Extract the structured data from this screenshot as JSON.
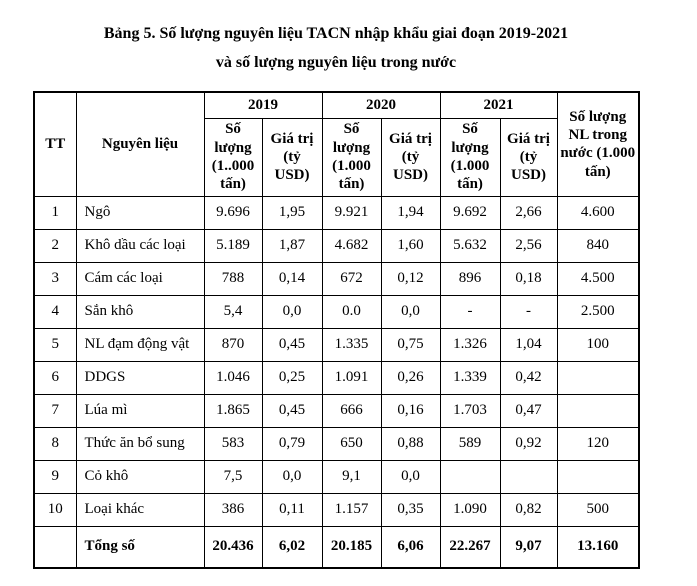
{
  "title": {
    "line1": "Bảng 5. Số lượng nguyên liệu TACN nhập khẩu giai đoạn 2019-2021",
    "line2": "và số lượng nguyên liệu trong nước"
  },
  "table": {
    "header": {
      "tt": "TT",
      "material": "Nguyên liệu",
      "year_groups": [
        {
          "year": "2019",
          "qty_label": "Số lượng (1..000 tấn)",
          "value_label": "Giá trị (tỷ USD)"
        },
        {
          "year": "2020",
          "qty_label": "Số lượng (1.000 tấn)",
          "value_label": "Giá trị (tỷ USD)"
        },
        {
          "year": "2021",
          "qty_label": "Số lượng (1.000 tấn)",
          "value_label": "Giá trị (tỷ USD)"
        }
      ],
      "domestic": "Số lượng NL trong nước (1.000 tấn)"
    },
    "rows": [
      {
        "tt": "1",
        "material": "Ngô",
        "q2019": "9.696",
        "v2019": "1,95",
        "q2020": "9.921",
        "v2020": "1,94",
        "q2021": "9.692",
        "v2021": "2,66",
        "domestic": "4.600"
      },
      {
        "tt": "2",
        "material": "Khô dầu các loại",
        "q2019": "5.189",
        "v2019": "1,87",
        "q2020": "4.682",
        "v2020": "1,60",
        "q2021": "5.632",
        "v2021": "2,56",
        "domestic": "840"
      },
      {
        "tt": "3",
        "material": "Cám các loại",
        "q2019": "788",
        "v2019": "0,14",
        "q2020": "672",
        "v2020": "0,12",
        "q2021": "896",
        "v2021": "0,18",
        "domestic": "4.500"
      },
      {
        "tt": "4",
        "material": "Sắn khô",
        "q2019": "5,4",
        "v2019": "0,0",
        "q2020": "0.0",
        "v2020": "0,0",
        "q2021": "-",
        "v2021": "-",
        "domestic": "2.500"
      },
      {
        "tt": "5",
        "material": "NL đạm động vật",
        "q2019": "870",
        "v2019": "0,45",
        "q2020": "1.335",
        "v2020": "0,75",
        "q2021": "1.326",
        "v2021": "1,04",
        "domestic": "100"
      },
      {
        "tt": "6",
        "material": "DDGS",
        "q2019": "1.046",
        "v2019": "0,25",
        "q2020": "1.091",
        "v2020": "0,26",
        "q2021": "1.339",
        "v2021": "0,42",
        "domestic": ""
      },
      {
        "tt": "7",
        "material": "Lúa mì",
        "q2019": "1.865",
        "v2019": "0,45",
        "q2020": "666",
        "v2020": "0,16",
        "q2021": "1.703",
        "v2021": "0,47",
        "domestic": ""
      },
      {
        "tt": "8",
        "material": "Thức ăn bổ sung",
        "q2019": "583",
        "v2019": "0,79",
        "q2020": "650",
        "v2020": "0,88",
        "q2021": "589",
        "v2021": "0,92",
        "domestic": "120"
      },
      {
        "tt": "9",
        "material": "Cỏ khô",
        "q2019": "7,5",
        "v2019": "0,0",
        "q2020": "9,1",
        "v2020": "0,0",
        "q2021": "",
        "v2021": "",
        "domestic": ""
      },
      {
        "tt": "10",
        "material": "Loại khác",
        "q2019": "386",
        "v2019": "0,11",
        "q2020": "1.157",
        "v2020": "0,35",
        "q2021": "1.090",
        "v2021": "0,82",
        "domestic": "500"
      },
      {
        "tt": "",
        "material": "Tổng số",
        "q2019": "20.436",
        "v2019": "6,02",
        "q2020": "20.185",
        "v2020": "6,06",
        "q2021": "22.267",
        "v2021": "9,07",
        "domestic": "13.160",
        "is_total": true
      }
    ]
  }
}
